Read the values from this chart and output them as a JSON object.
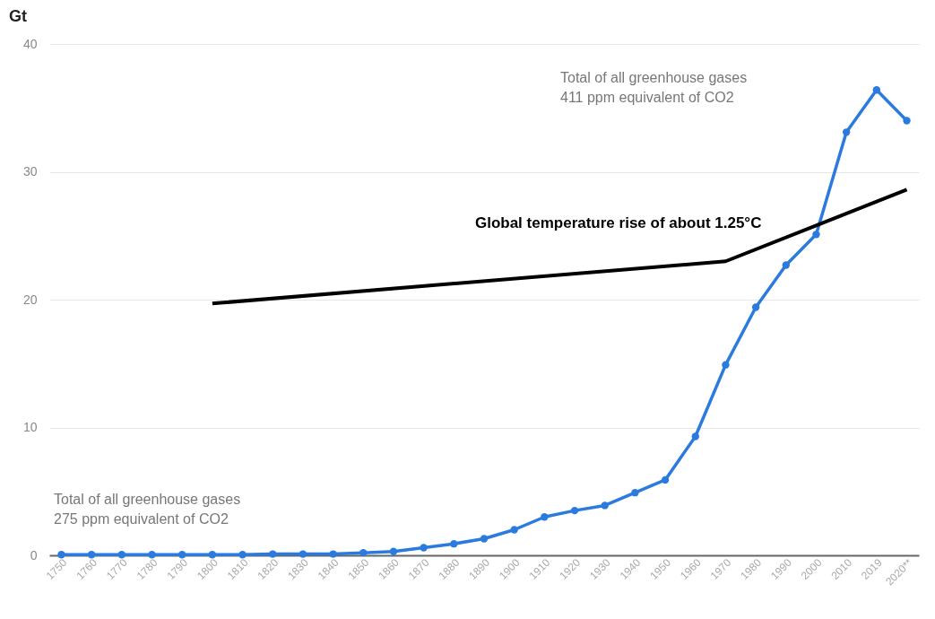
{
  "chart_data": {
    "type": "line",
    "ylabel": "Gt",
    "categories": [
      "1750",
      "1760",
      "1770",
      "1780",
      "1790",
      "1800",
      "1810",
      "1820",
      "1830",
      "1840",
      "1850",
      "1860",
      "1870",
      "1880",
      "1890",
      "1900",
      "1910",
      "1920",
      "1930",
      "1940",
      "1950",
      "1960",
      "1970",
      "1980",
      "1990",
      "2000",
      "2010",
      "2019",
      "2020**"
    ],
    "series": [
      {
        "color": "#2b7bde",
        "marker": "circle",
        "values": [
          0.05,
          0.05,
          0.05,
          0.05,
          0.05,
          0.05,
          0.05,
          0.1,
          0.1,
          0.1,
          0.2,
          0.3,
          0.6,
          0.9,
          1.3,
          2.0,
          3.0,
          3.5,
          3.9,
          4.9,
          5.9,
          9.3,
          14.9,
          19.4,
          22.7,
          25.1,
          33.1,
          36.4,
          34.0
        ]
      },
      {
        "name": "Global temperature rise of about 1.25°C",
        "color": "#000000",
        "marker": "none",
        "values": [
          null,
          null,
          null,
          null,
          null,
          19.7,
          null,
          null,
          null,
          null,
          null,
          null,
          null,
          null,
          null,
          null,
          null,
          null,
          null,
          null,
          null,
          null,
          23.0,
          null,
          null,
          null,
          null,
          null,
          28.6
        ]
      }
    ],
    "annotations": [
      "Total of all greenhouse gases\n275 ppm equivalent of CO2",
      "Total of all greenhouse gases\n411 ppm equivalent of CO2"
    ],
    "ylim": [
      0,
      40
    ],
    "yticks": [
      0,
      10,
      20,
      30,
      40
    ],
    "grid": "y"
  }
}
